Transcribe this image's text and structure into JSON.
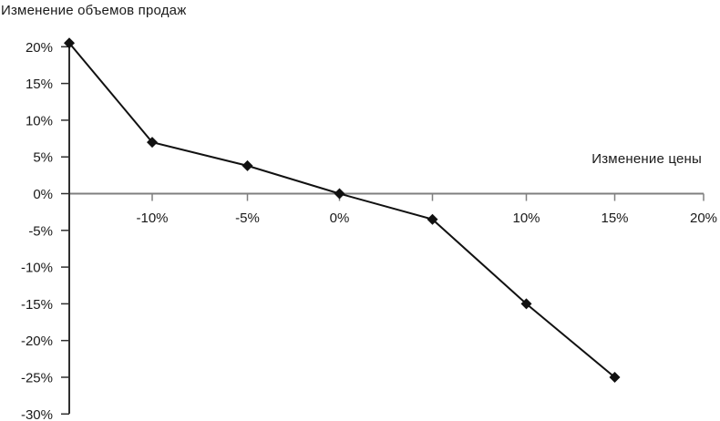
{
  "page": {
    "background": "#ffffff"
  },
  "chart_data": {
    "type": "line",
    "title": "Изменение объемов продаж",
    "xlabel": "Изменение цены",
    "ylabel": "",
    "x": [
      -15,
      -10,
      -5,
      0,
      5,
      10,
      15
    ],
    "y": [
      20.5,
      7,
      3.8,
      0,
      -3.5,
      -15,
      -25
    ],
    "xlim": [
      -15,
      20
    ],
    "ylim": [
      -30,
      21
    ],
    "grid": false,
    "legend": "none",
    "marker": "diamond",
    "x_ticks": [
      {
        "value": -10,
        "label": "-10%"
      },
      {
        "value": -5,
        "label": "-5%"
      },
      {
        "value": 0,
        "label": "0%"
      },
      {
        "value": 5,
        "label": ""
      },
      {
        "value": 10,
        "label": "10%"
      },
      {
        "value": 15,
        "label": "15%"
      },
      {
        "value": 20,
        "label": "20%"
      }
    ],
    "y_ticks": [
      {
        "value": 20,
        "label": "20%"
      },
      {
        "value": 15,
        "label": "15%"
      },
      {
        "value": 10,
        "label": "10%"
      },
      {
        "value": 5,
        "label": "5%"
      },
      {
        "value": 0,
        "label": "0%"
      },
      {
        "value": -5,
        "label": "-5%"
      },
      {
        "value": -10,
        "label": "-10%"
      },
      {
        "value": -15,
        "label": "-15%"
      },
      {
        "value": -20,
        "label": "-20%"
      },
      {
        "value": -25,
        "label": "-25%"
      },
      {
        "value": -30,
        "label": "-30%"
      }
    ],
    "colors": {
      "line": "#111111",
      "marker": "#111111",
      "x_axis": "#7f7f7f",
      "y_axis": "#2f2f2f",
      "text": "#1a1a1a"
    }
  }
}
